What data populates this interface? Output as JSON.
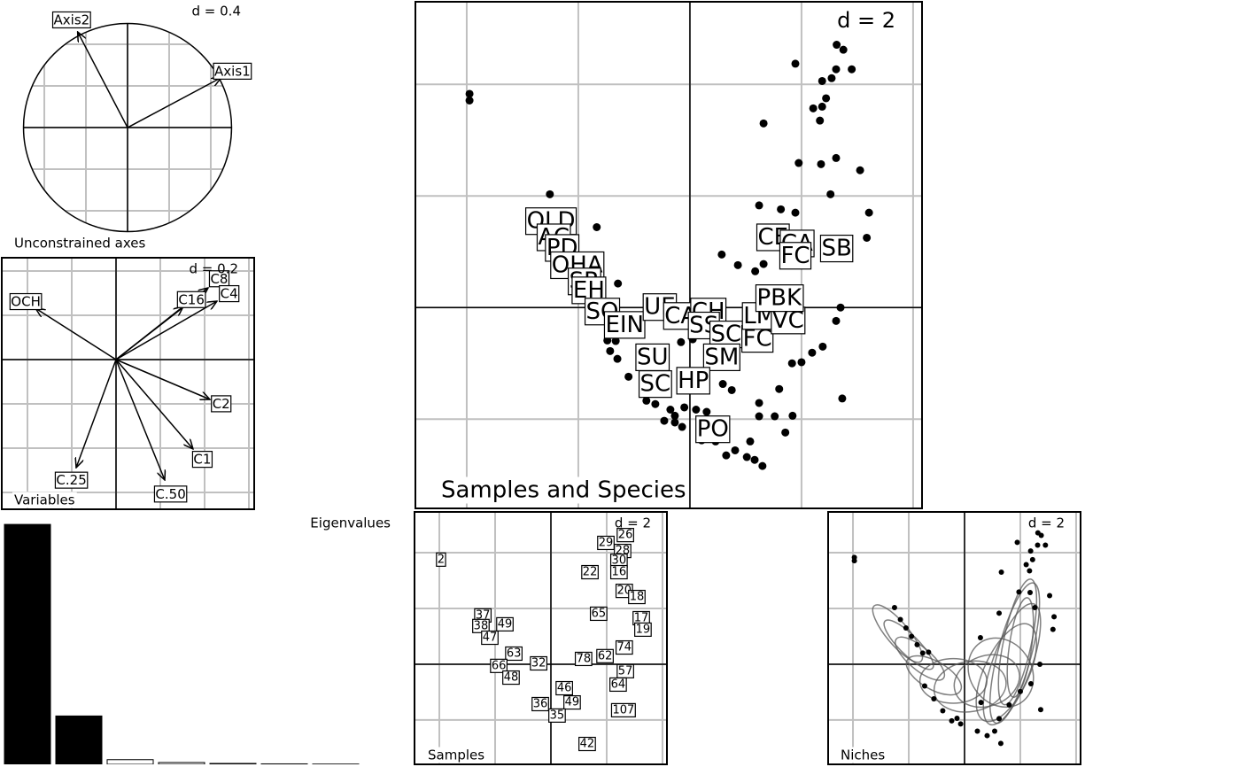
{
  "chart_data": [
    {
      "type": "circle",
      "title": "Unconstrained axes",
      "scale_label": "d = 0.4",
      "xlim": [
        -1.226,
        1.243
      ],
      "ylim": [
        -1.055,
        1.226
      ],
      "xticks": [
        -0.8,
        -0.4,
        0,
        0.4,
        0.8
      ],
      "yticks": [
        -0.8,
        -0.4,
        0,
        0.4,
        0.8
      ],
      "arrows": [
        {
          "label": "Axis1",
          "x": 0.9,
          "y": 0.48
        },
        {
          "label": "Axis2",
          "x": -0.48,
          "y": 0.92
        }
      ]
    },
    {
      "type": "arrow",
      "title": "Variables",
      "scale_label": "d = 0.2",
      "xlim": [
        -0.516,
        0.624
      ],
      "ylim": [
        -0.676,
        0.46
      ],
      "xticks": [
        -0.4,
        -0.2,
        0,
        0.2,
        0.4,
        0.6
      ],
      "yticks": [
        -0.6,
        -0.4,
        -0.2,
        0,
        0.2,
        0.4
      ],
      "arrows": [
        {
          "label": "OCH",
          "x": -0.364,
          "y": 0.232
        },
        {
          "label": "C8",
          "x": 0.416,
          "y": 0.324
        },
        {
          "label": "C4",
          "x": 0.456,
          "y": 0.264
        },
        {
          "label": "C16",
          "x": 0.304,
          "y": 0.24
        },
        {
          "label": "C2",
          "x": 0.424,
          "y": -0.18
        },
        {
          "label": "C1",
          "x": 0.348,
          "y": -0.404
        },
        {
          "label": "C.25",
          "x": -0.18,
          "y": -0.488
        },
        {
          "label": "C.50",
          "x": 0.22,
          "y": -0.544
        }
      ]
    },
    {
      "type": "bar",
      "title": "Eigenvalues",
      "ylim": [
        0,
        2.6
      ],
      "values": [
        2.58,
        0.52,
        0.05,
        0.02,
        0.01,
        0.005,
        0.003
      ],
      "colors": [
        "#000000",
        "#000000",
        "#ffffff",
        "#ffffff",
        "#ffffff",
        "#ffffff",
        "#ffffff"
      ]
    },
    {
      "type": "scatter",
      "title": "Samples and Species",
      "scale_label": "d = 2",
      "xlim": [
        -4.92,
        4.16
      ],
      "ylim": [
        -3.6,
        5.48
      ],
      "xticks": [
        -4,
        -2,
        0,
        2,
        4
      ],
      "yticks": [
        -2,
        0,
        2,
        4
      ],
      "points": [
        [
          -3.95,
          3.83
        ],
        [
          -3.95,
          3.71
        ],
        [
          2.63,
          4.71
        ],
        [
          2.75,
          4.62
        ],
        [
          1.89,
          4.37
        ],
        [
          2.62,
          4.27
        ],
        [
          2.9,
          4.27
        ],
        [
          2.37,
          4.06
        ],
        [
          2.54,
          4.11
        ],
        [
          2.44,
          3.75
        ],
        [
          2.21,
          3.57
        ],
        [
          2.37,
          3.6
        ],
        [
          2.33,
          3.35
        ],
        [
          1.32,
          3.3
        ],
        [
          1.95,
          2.59
        ],
        [
          2.35,
          2.57
        ],
        [
          2.62,
          2.68
        ],
        [
          3.05,
          2.46
        ],
        [
          2.52,
          2.03
        ],
        [
          1.24,
          1.83
        ],
        [
          1.63,
          1.76
        ],
        [
          1.89,
          1.7
        ],
        [
          3.21,
          1.7
        ],
        [
          3.17,
          1.25
        ],
        [
          0.57,
          0.95
        ],
        [
          0.86,
          0.76
        ],
        [
          1.17,
          0.65
        ],
        [
          1.32,
          0.78
        ],
        [
          -2.51,
          2.03
        ],
        [
          -1.67,
          1.44
        ],
        [
          -1.29,
          0.43
        ],
        [
          2.7,
          0
        ],
        [
          2.62,
          -0.24
        ],
        [
          2.38,
          -0.7
        ],
        [
          2.19,
          -0.81
        ],
        [
          2,
          -0.98
        ],
        [
          1.83,
          -1
        ],
        [
          2.73,
          -1.63
        ],
        [
          1.6,
          -1.46
        ],
        [
          1.24,
          -1.71
        ],
        [
          1.24,
          -1.95
        ],
        [
          1.52,
          -1.95
        ],
        [
          1.84,
          -1.94
        ],
        [
          1.71,
          -2.24
        ],
        [
          1.08,
          -2.4
        ],
        [
          1.3,
          -2.84
        ],
        [
          1.16,
          -2.73
        ],
        [
          1.02,
          -2.68
        ],
        [
          0.81,
          -2.56
        ],
        [
          0.65,
          -2.65
        ],
        [
          0.46,
          -2.4
        ],
        [
          0.21,
          -2.38
        ],
        [
          -0.14,
          -2.14
        ],
        [
          -0.46,
          -2.03
        ],
        [
          -0.35,
          -1.83
        ],
        [
          -0.1,
          -1.79
        ],
        [
          0.11,
          -1.83
        ],
        [
          0.3,
          -1.87
        ],
        [
          -0.62,
          -1.73
        ],
        [
          -0.78,
          -1.67
        ],
        [
          -1.1,
          -1.24
        ],
        [
          -1.3,
          -0.92
        ],
        [
          -1.43,
          -0.78
        ],
        [
          -1.33,
          -0.6
        ],
        [
          -1.48,
          -0.59
        ],
        [
          -0.16,
          -0.62
        ],
        [
          0.05,
          -0.57
        ],
        [
          0.59,
          -1.37
        ],
        [
          0.75,
          -1.48
        ],
        [
          -0.27,
          -1.94
        ],
        [
          -0.27,
          -2.06
        ]
      ],
      "labels": [
        {
          "label": "OLD",
          "x": -2.49,
          "y": 1.54
        },
        {
          "label": "AC",
          "x": -2.44,
          "y": 1.25
        },
        {
          "label": "PD",
          "x": -2.29,
          "y": 1.06
        },
        {
          "label": "OHA",
          "x": -2.02,
          "y": 0.75
        },
        {
          "label": "SR",
          "x": -1.89,
          "y": 0.46
        },
        {
          "label": "EH",
          "x": -1.81,
          "y": 0.3
        },
        {
          "label": "SO",
          "x": -1.57,
          "y": -0.08
        },
        {
          "label": "EIN",
          "x": -1.17,
          "y": -0.32
        },
        {
          "label": "UE",
          "x": -0.54,
          "y": 0
        },
        {
          "label": "CA",
          "x": -0.17,
          "y": -0.16
        },
        {
          "label": "CH",
          "x": 0.33,
          "y": -0.08
        },
        {
          "label": "SS",
          "x": 0.25,
          "y": -0.33
        },
        {
          "label": "SC",
          "x": 0.65,
          "y": -0.49
        },
        {
          "label": "FC",
          "x": 1.21,
          "y": -0.57
        },
        {
          "label": "LM",
          "x": 1.25,
          "y": -0.16
        },
        {
          "label": "VC",
          "x": 1.76,
          "y": -0.24
        },
        {
          "label": "PBK",
          "x": 1.6,
          "y": 0.16
        },
        {
          "label": "CE",
          "x": 1.49,
          "y": 1.25
        },
        {
          "label": "CA",
          "x": 1.92,
          "y": 1.14
        },
        {
          "label": "FC",
          "x": 1.89,
          "y": 0.92
        },
        {
          "label": "SB",
          "x": 2.63,
          "y": 1.05
        },
        {
          "label": "SU",
          "x": -0.67,
          "y": -0.9
        },
        {
          "label": "SM",
          "x": 0.57,
          "y": -0.9
        },
        {
          "label": "SC",
          "x": -0.62,
          "y": -1.38
        },
        {
          "label": "HP",
          "x": 0.06,
          "y": -1.32
        },
        {
          "label": "PO",
          "x": 0.41,
          "y": -2.19
        }
      ]
    },
    {
      "type": "label",
      "title": "Samples",
      "scale_label": "d = 2",
      "xlim": [
        -4.89,
        4.16
      ],
      "ylim": [
        -3.59,
        5.46
      ],
      "xticks": [
        -4,
        -2,
        0,
        2,
        4
      ],
      "yticks": [
        -2,
        0,
        2,
        4
      ],
      "labels": [
        {
          "label": "2",
          "x": -3.94,
          "y": 3.75
        },
        {
          "label": "29",
          "x": 1.97,
          "y": 4.35
        },
        {
          "label": "26",
          "x": 2.67,
          "y": 4.63
        },
        {
          "label": "28",
          "x": 2.57,
          "y": 4.06
        },
        {
          "label": "30",
          "x": 2.44,
          "y": 3.71
        },
        {
          "label": "22",
          "x": 1.4,
          "y": 3.3
        },
        {
          "label": "16",
          "x": 2.44,
          "y": 3.3
        },
        {
          "label": "20",
          "x": 2.63,
          "y": 2.63
        },
        {
          "label": "18",
          "x": 3.08,
          "y": 2.41
        },
        {
          "label": "65",
          "x": 1.71,
          "y": 1.81
        },
        {
          "label": "17",
          "x": 3.24,
          "y": 1.65
        },
        {
          "label": "19",
          "x": 3.3,
          "y": 1.24
        },
        {
          "label": "74",
          "x": 2.63,
          "y": 0.6
        },
        {
          "label": "57",
          "x": 2.67,
          "y": -0.25
        },
        {
          "label": "64",
          "x": 2.41,
          "y": -0.73
        },
        {
          "label": "107",
          "x": 2.6,
          "y": -1.65
        },
        {
          "label": "37",
          "x": -2.44,
          "y": 1.75
        },
        {
          "label": "38",
          "x": -2.51,
          "y": 1.37
        },
        {
          "label": "49",
          "x": -1.65,
          "y": 1.43
        },
        {
          "label": "47",
          "x": -2.19,
          "y": 0.95
        },
        {
          "label": "63",
          "x": -1.33,
          "y": 0.38
        },
        {
          "label": "32",
          "x": -0.44,
          "y": 0.03
        },
        {
          "label": "66",
          "x": -1.87,
          "y": -0.06
        },
        {
          "label": "48",
          "x": -1.43,
          "y": -0.48
        },
        {
          "label": "46",
          "x": 0.48,
          "y": -0.86
        },
        {
          "label": "36",
          "x": -0.38,
          "y": -1.43
        },
        {
          "label": "49",
          "x": 0.76,
          "y": -1.37
        },
        {
          "label": "35",
          "x": 0.22,
          "y": -1.84
        },
        {
          "label": "42",
          "x": 1.3,
          "y": -2.86
        },
        {
          "label": "62",
          "x": 1.94,
          "y": 0.29
        },
        {
          "label": "78",
          "x": 1.17,
          "y": 0.19
        }
      ]
    },
    {
      "type": "ellipse",
      "title": "Niches",
      "scale_label": "d = 2",
      "xlim": [
        -4.89,
        4.16
      ],
      "ylim": [
        -3.59,
        5.46
      ],
      "xticks": [
        -4,
        -2,
        0,
        2,
        4
      ],
      "yticks": [
        -2,
        0,
        2,
        4
      ],
      "points": [
        [
          -3.95,
          3.83
        ],
        [
          -3.95,
          3.71
        ],
        [
          2.63,
          4.71
        ],
        [
          2.75,
          4.62
        ],
        [
          1.89,
          4.37
        ],
        [
          2.62,
          4.27
        ],
        [
          2.9,
          4.27
        ],
        [
          2.37,
          4.06
        ],
        [
          2.44,
          3.75
        ],
        [
          2.21,
          3.57
        ],
        [
          2.33,
          3.35
        ],
        [
          1.32,
          3.3
        ],
        [
          1.95,
          2.59
        ],
        [
          2.35,
          2.57
        ],
        [
          3.05,
          2.46
        ],
        [
          2.52,
          2.03
        ],
        [
          1.24,
          1.83
        ],
        [
          3.21,
          1.7
        ],
        [
          3.17,
          1.25
        ],
        [
          0.57,
          0.95
        ],
        [
          -2.51,
          2.03
        ],
        [
          -2.3,
          1.6
        ],
        [
          -2.1,
          1.3
        ],
        [
          -1.9,
          1.0
        ],
        [
          -1.7,
          0.7
        ],
        [
          -1.5,
          0.4
        ],
        [
          -1.29,
          0.43
        ],
        [
          2.7,
          0
        ],
        [
          2.38,
          -0.7
        ],
        [
          2,
          -0.98
        ],
        [
          2.73,
          -1.63
        ],
        [
          1.6,
          -1.46
        ],
        [
          1.24,
          -1.95
        ],
        [
          1.08,
          -2.4
        ],
        [
          1.3,
          -2.84
        ],
        [
          0.81,
          -2.56
        ],
        [
          0.46,
          -2.4
        ],
        [
          -0.14,
          -2.14
        ],
        [
          -0.46,
          -2.03
        ],
        [
          -0.78,
          -1.67
        ],
        [
          -1.1,
          -1.24
        ],
        [
          -1.43,
          -0.78
        ],
        [
          0.59,
          -1.37
        ],
        [
          -0.27,
          -1.94
        ]
      ],
      "ellipses": [
        {
          "x": -2.4,
          "y": 1.1,
          "rx": 1.3,
          "ry": 0.4,
          "angle": -50
        },
        {
          "x": -2.0,
          "y": 0.7,
          "rx": 1.2,
          "ry": 0.35,
          "angle": -45
        },
        {
          "x": -1.6,
          "y": 0.2,
          "rx": 1.1,
          "ry": 0.4,
          "angle": -40
        },
        {
          "x": -1.1,
          "y": -0.4,
          "rx": 1.1,
          "ry": 0.5,
          "angle": -30
        },
        {
          "x": -0.4,
          "y": -0.6,
          "rx": 1.2,
          "ry": 0.8,
          "angle": 0
        },
        {
          "x": 0.2,
          "y": -0.8,
          "rx": 1.3,
          "ry": 0.9,
          "angle": 10
        },
        {
          "x": 0.8,
          "y": -0.6,
          "rx": 1.2,
          "ry": 0.9,
          "angle": 20
        },
        {
          "x": 1.3,
          "y": -0.3,
          "rx": 1.1,
          "ry": 1.3,
          "angle": 35
        },
        {
          "x": 1.8,
          "y": 0.4,
          "rx": 0.6,
          "ry": 2.6,
          "angle": -15
        },
        {
          "x": 1.7,
          "y": 0.0,
          "rx": 0.7,
          "ry": 2.3,
          "angle": -20
        },
        {
          "x": 1.9,
          "y": 0.8,
          "rx": 0.5,
          "ry": 2.3,
          "angle": -12
        },
        {
          "x": 1.5,
          "y": -0.3,
          "rx": 0.8,
          "ry": 1.9,
          "angle": -25
        },
        {
          "x": 2.0,
          "y": 0.6,
          "rx": 0.4,
          "ry": 1.8,
          "angle": -8
        }
      ]
    }
  ]
}
